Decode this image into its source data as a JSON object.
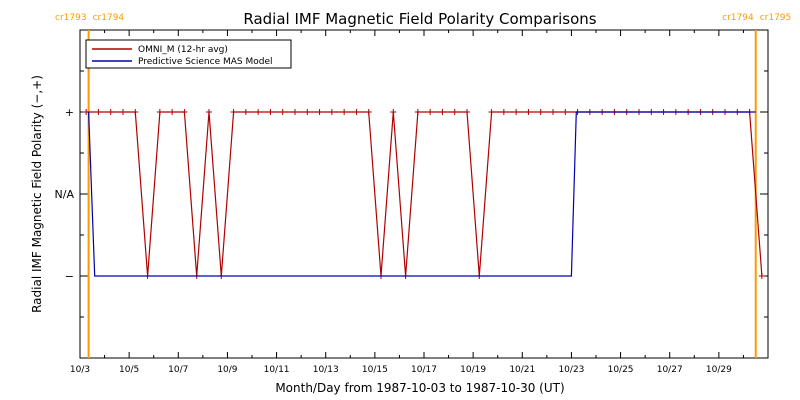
{
  "chart_data": {
    "type": "line",
    "title": "Radial IMF Magnetic Field Polarity Comparisons",
    "xlabel": "Month/Day from 1987-10-03 to 1987-10-30 (UT)",
    "ylabel": "Radial IMF Magnetic Field Polarity (−,+)",
    "xlim_days": [
      0,
      28
    ],
    "x_ticks": [
      {
        "day": 0,
        "label": "10/3"
      },
      {
        "day": 2,
        "label": "10/5"
      },
      {
        "day": 4,
        "label": "10/7"
      },
      {
        "day": 6,
        "label": "10/9"
      },
      {
        "day": 8,
        "label": "10/11"
      },
      {
        "day": 10,
        "label": "10/13"
      },
      {
        "day": 12,
        "label": "10/15"
      },
      {
        "day": 14,
        "label": "10/17"
      },
      {
        "day": 16,
        "label": "10/19"
      },
      {
        "day": 18,
        "label": "10/21"
      },
      {
        "day": 20,
        "label": "10/23"
      },
      {
        "day": 22,
        "label": "10/25"
      },
      {
        "day": 24,
        "label": "10/27"
      },
      {
        "day": 26,
        "label": "10/29"
      }
    ],
    "y_ticks": [
      {
        "value": 1,
        "label": "+"
      },
      {
        "value": 0,
        "label": "N/A"
      },
      {
        "value": -1,
        "label": "−"
      }
    ],
    "ylim": [
      -2,
      2
    ],
    "carrington": [
      {
        "day": 0.35,
        "left": "cr1793",
        "right": "cr1794"
      },
      {
        "day": 27.5,
        "left": "cr1794",
        "right": "cr1795"
      }
    ],
    "cr_color": "#ff9900",
    "series": [
      {
        "name": "OMNI_M (12-hr avg)",
        "color": "#b00000",
        "markers": true,
        "points": [
          [
            0.25,
            1
          ],
          [
            0.75,
            1
          ],
          [
            1.25,
            1
          ],
          [
            1.75,
            1
          ],
          [
            2.25,
            1
          ],
          [
            2.75,
            -1
          ],
          [
            3.25,
            1
          ],
          [
            3.75,
            1
          ],
          [
            4.25,
            1
          ],
          [
            4.75,
            -1
          ],
          [
            5.25,
            1
          ],
          [
            5.75,
            -1
          ],
          [
            6.25,
            1
          ],
          [
            6.75,
            1
          ],
          [
            7.25,
            1
          ],
          [
            7.75,
            1
          ],
          [
            8.25,
            1
          ],
          [
            8.75,
            1
          ],
          [
            9.25,
            1
          ],
          [
            9.75,
            1
          ],
          [
            10.25,
            1
          ],
          [
            10.75,
            1
          ],
          [
            11.25,
            1
          ],
          [
            11.75,
            1
          ],
          [
            12.25,
            -1
          ],
          [
            12.75,
            1
          ],
          [
            13.25,
            -1
          ],
          [
            13.75,
            1
          ],
          [
            14.25,
            1
          ],
          [
            14.75,
            1
          ],
          [
            15.25,
            1
          ],
          [
            15.75,
            1
          ],
          [
            16.25,
            -1
          ],
          [
            16.75,
            1
          ],
          [
            17.25,
            1
          ],
          [
            17.75,
            1
          ],
          [
            18.25,
            1
          ],
          [
            18.75,
            1
          ],
          [
            19.25,
            1
          ],
          [
            19.75,
            1
          ],
          [
            20.25,
            1
          ],
          [
            20.75,
            1
          ],
          [
            21.25,
            1
          ],
          [
            21.75,
            1
          ],
          [
            22.25,
            1
          ],
          [
            22.75,
            1
          ],
          [
            23.25,
            1
          ],
          [
            23.75,
            1
          ],
          [
            24.25,
            1
          ],
          [
            24.75,
            1
          ],
          [
            25.25,
            1
          ],
          [
            25.75,
            1
          ],
          [
            26.25,
            1
          ],
          [
            26.75,
            1
          ],
          [
            27.25,
            1
          ],
          [
            27.75,
            -1
          ]
        ]
      },
      {
        "name": "Predictive Science MAS Model",
        "color": "#0000b0",
        "markers": false,
        "points": [
          [
            0.35,
            1
          ],
          [
            0.6,
            -1
          ],
          [
            20.0,
            -1
          ],
          [
            20.2,
            1
          ],
          [
            27.5,
            1
          ]
        ]
      }
    ],
    "legend_position": "top-left"
  }
}
